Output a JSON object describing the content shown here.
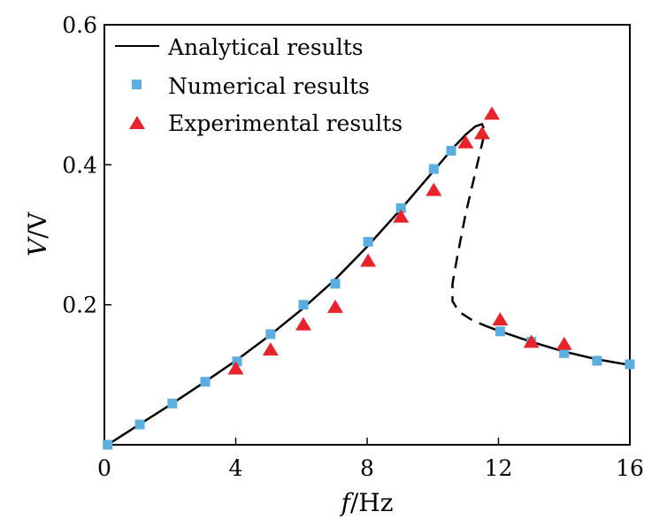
{
  "chart_data": {
    "type": "line",
    "title": "",
    "xlabel": "f/Hz",
    "ylabel": "V/V",
    "xlim": [
      0,
      16
    ],
    "ylim": [
      0,
      0.6
    ],
    "xticks": [
      "0",
      "4",
      "8",
      "12",
      "16"
    ],
    "xtick_values": [
      0,
      4,
      8,
      12,
      16
    ],
    "yticks": [
      "0.2",
      "0.4",
      "0.6"
    ],
    "ytick_values": [
      0.2,
      0.4,
      0.6
    ],
    "legend_position": "top-left",
    "series": [
      {
        "name": "Analytical results",
        "kind": "line",
        "color": "#000000",
        "stable_upper": [
          [
            0.1,
            0
          ],
          [
            1,
            0.027
          ],
          [
            2,
            0.057
          ],
          [
            3,
            0.088
          ],
          [
            4,
            0.12
          ],
          [
            5,
            0.155
          ],
          [
            6,
            0.193
          ],
          [
            7,
            0.235
          ],
          [
            8,
            0.283
          ],
          [
            9,
            0.335
          ],
          [
            10,
            0.39
          ],
          [
            10.6,
            0.423
          ],
          [
            11,
            0.443
          ],
          [
            11.3,
            0.455
          ],
          [
            11.5,
            0.458
          ],
          [
            11.55,
            0.452
          ]
        ],
        "unstable": [
          [
            11.55,
            0.44
          ],
          [
            11.3,
            0.39
          ],
          [
            11,
            0.33
          ],
          [
            10.75,
            0.27
          ],
          [
            10.6,
            0.23
          ],
          [
            10.6,
            0.205
          ],
          [
            10.8,
            0.19
          ],
          [
            11.2,
            0.178
          ],
          [
            11.6,
            0.17
          ]
        ],
        "stable_lower": [
          [
            11.6,
            0.17
          ],
          [
            12,
            0.163
          ],
          [
            13,
            0.147
          ],
          [
            14,
            0.133
          ],
          [
            15,
            0.122
          ],
          [
            16,
            0.114
          ]
        ]
      },
      {
        "name": "Numerical results",
        "kind": "scatter",
        "marker": "square",
        "color": "#5aafe0",
        "points": [
          [
            0.1,
            0
          ],
          [
            1.08,
            0.029
          ],
          [
            2.07,
            0.059
          ],
          [
            3.07,
            0.09
          ],
          [
            4.04,
            0.119
          ],
          [
            5.06,
            0.158
          ],
          [
            6.06,
            0.2
          ],
          [
            7.03,
            0.23
          ],
          [
            8.03,
            0.29
          ],
          [
            9.03,
            0.338
          ],
          [
            10.03,
            0.394
          ],
          [
            10.56,
            0.42
          ],
          [
            12.05,
            0.162
          ],
          [
            13,
            0.147
          ],
          [
            14,
            0.131
          ],
          [
            15,
            0.12
          ],
          [
            16,
            0.115
          ]
        ]
      },
      {
        "name": "Experimental results",
        "kind": "scatter",
        "marker": "triangle",
        "color": "#e8232c",
        "points": [
          [
            4,
            0.108
          ],
          [
            5.06,
            0.135
          ],
          [
            6.06,
            0.171
          ],
          [
            7.03,
            0.196
          ],
          [
            8.03,
            0.262
          ],
          [
            9.03,
            0.325
          ],
          [
            10.03,
            0.363
          ],
          [
            11,
            0.431
          ],
          [
            11.5,
            0.444
          ],
          [
            11.8,
            0.472
          ],
          [
            12.05,
            0.178
          ],
          [
            13,
            0.146
          ],
          [
            14,
            0.143
          ]
        ]
      }
    ]
  }
}
